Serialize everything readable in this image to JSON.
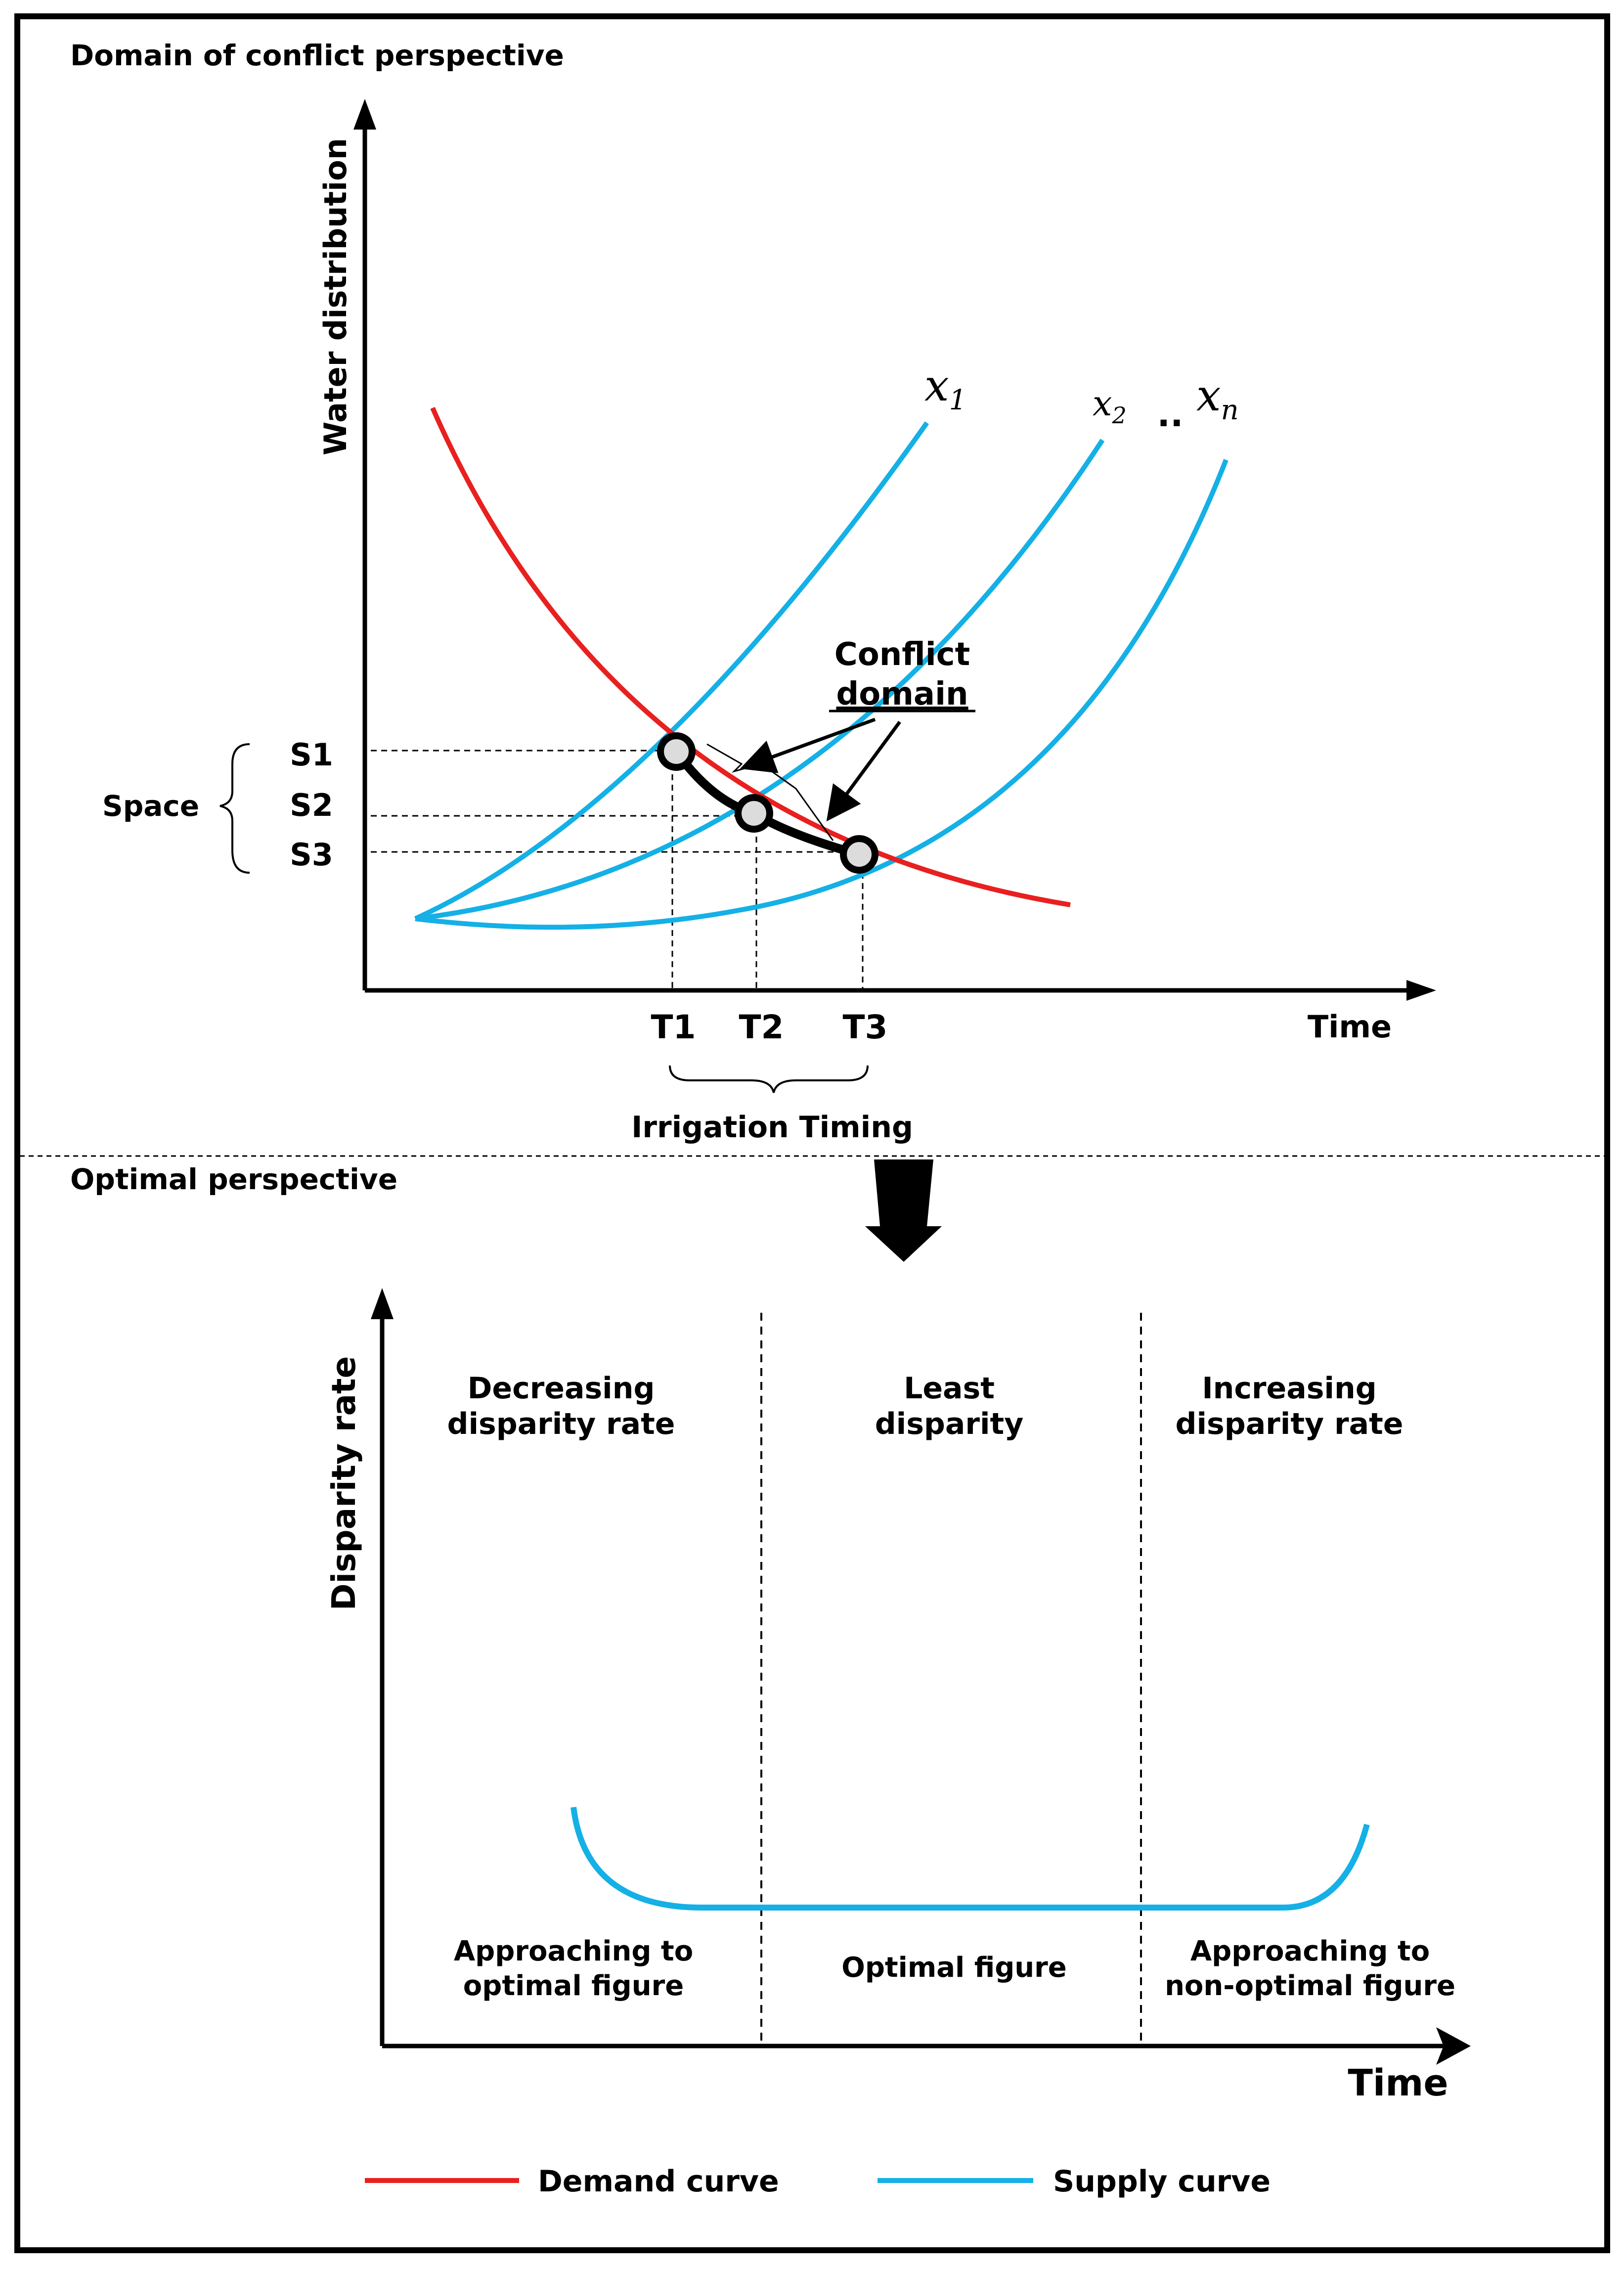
{
  "colors": {
    "demand": "#e8201f",
    "supply": "#14b0e6",
    "ink": "#000000"
  },
  "top_panel": {
    "title": "Domain of conflict perspective",
    "y_axis_label": "Water distribution",
    "x_axis_label": "Time",
    "curve_labels": {
      "x1": {
        "base": "x",
        "sub": "1"
      },
      "x2": {
        "base": "x",
        "sub": "2"
      },
      "ellipsis": "..",
      "xn": {
        "base": "x",
        "sub": "n"
      }
    },
    "conflict_label": {
      "line1": "Conflict",
      "line2": "domain"
    },
    "space_label": "Space",
    "space_levels": [
      "S1",
      "S2",
      "S3"
    ],
    "time_points": [
      "T1",
      "T2",
      "T3"
    ],
    "irrigation_label": "Irrigation Timing"
  },
  "bottom_panel": {
    "title": "Optimal perspective",
    "y_axis_label": "Disparity rate",
    "x_axis_label": "Time",
    "regions": [
      {
        "top_line1": "Decreasing",
        "top_line2": "disparity rate",
        "bottom_line1": "Approaching to",
        "bottom_line2": "optimal figure"
      },
      {
        "top_line1": "Least",
        "top_line2": "disparity",
        "bottom_line1": "Optimal figure",
        "bottom_line2": ""
      },
      {
        "top_line1": "Increasing",
        "top_line2": "disparity rate",
        "bottom_line1": "Approaching to",
        "bottom_line2": "non-optimal figure"
      }
    ]
  },
  "legend": {
    "demand_label": "Demand curve",
    "supply_label": "Supply curve"
  }
}
